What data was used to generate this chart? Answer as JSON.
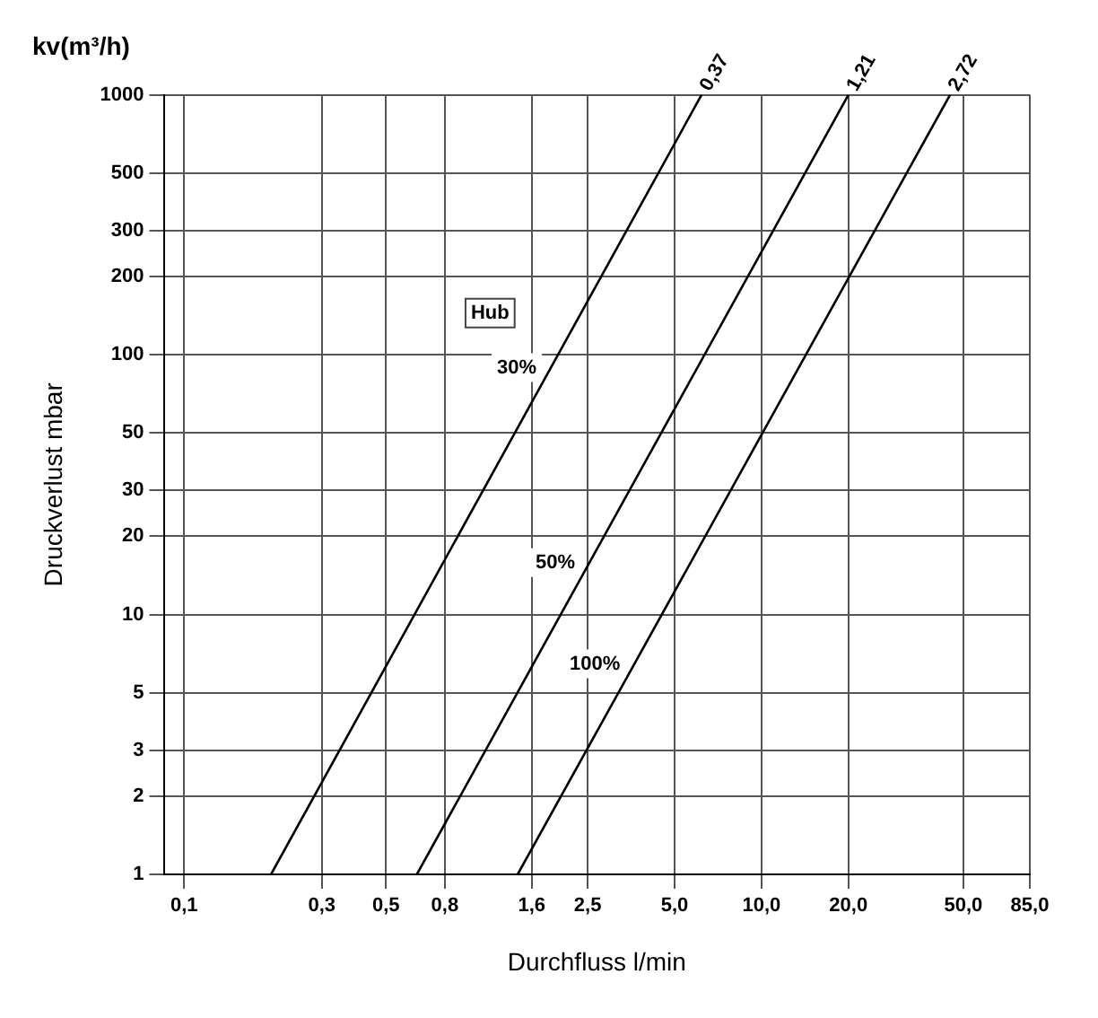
{
  "chart_data": {
    "type": "line",
    "title": "kv(m³/h)",
    "xlabel": "Durchfluss l/min",
    "ylabel": "Druckverlust mbar",
    "log": "xy",
    "grid": true,
    "legend": false,
    "marker": "none",
    "line_style": "solid",
    "xlim": [
      0.085,
      85
    ],
    "ylim": [
      1,
      1000
    ],
    "xticks": [
      {
        "value": 0.1,
        "label": "0,1"
      },
      {
        "value": 0.3,
        "label": "0,3"
      },
      {
        "value": 0.5,
        "label": "0,5"
      },
      {
        "value": 0.8,
        "label": "0,8"
      },
      {
        "value": 1.6,
        "label": "1,6"
      },
      {
        "value": 2.5,
        "label": "2,5"
      },
      {
        "value": 5,
        "label": "5,0"
      },
      {
        "value": 10,
        "label": "10,0"
      },
      {
        "value": 20,
        "label": "20,0"
      },
      {
        "value": 50,
        "label": "50,0"
      },
      {
        "value": 85,
        "label": "85,0"
      }
    ],
    "yticks": [
      1,
      2,
      3,
      5,
      10,
      20,
      30,
      50,
      100,
      200,
      300,
      500,
      1000
    ],
    "series": [
      {
        "name": "0,37",
        "color": "#000000",
        "x": [
          0.2,
          6.2
        ],
        "values": [
          1,
          1000
        ]
      },
      {
        "name": "1,21",
        "color": "#000000",
        "x": [
          0.64,
          20
        ],
        "values": [
          1,
          1000
        ]
      },
      {
        "name": "2,72",
        "color": "#000000",
        "x": [
          1.43,
          45
        ],
        "values": [
          1,
          1000
        ]
      }
    ],
    "annotations": [
      "Hub",
      "30%",
      "50%",
      "100%"
    ]
  }
}
